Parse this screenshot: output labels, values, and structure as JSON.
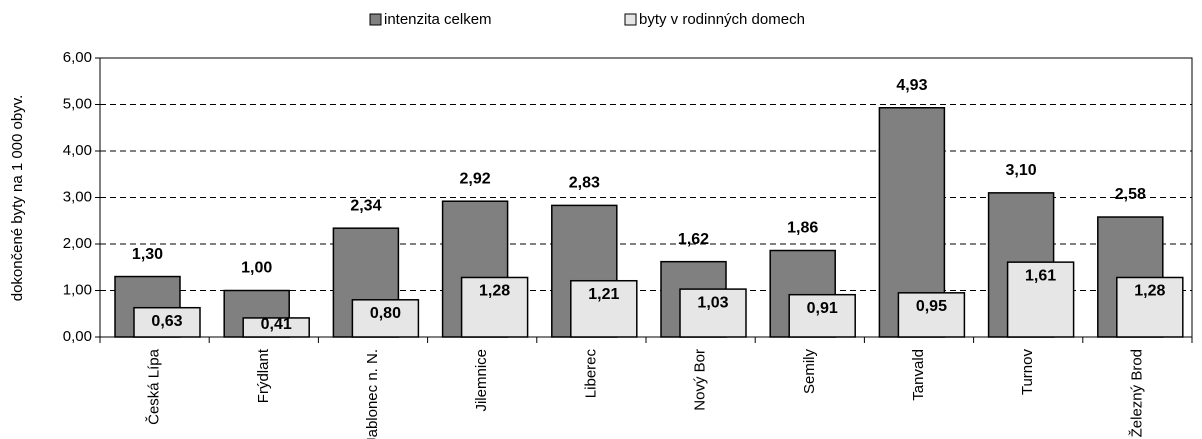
{
  "chart_data": {
    "type": "bar",
    "y_label": "dokončené byty na 1 000 obyv.",
    "categories": [
      "Česká Lípa",
      "Frýdlant",
      "Jablonec n. N.",
      "Jilemnice",
      "Liberec",
      "Nový Bor",
      "Semily",
      "Tanvald",
      "Turnov",
      "Železný Brod"
    ],
    "series": [
      {
        "name": "intenzita celkem",
        "color": "#808080",
        "values": [
          1.3,
          1.0,
          2.34,
          2.92,
          2.83,
          1.62,
          1.86,
          4.93,
          3.1,
          2.58
        ],
        "value_labels": [
          "1,30",
          "1,00",
          "2,34",
          "2,92",
          "2,83",
          "1,62",
          "1,86",
          "4,93",
          "3,10",
          "2,58"
        ]
      },
      {
        "name": "byty v rodinných domech",
        "color": "#e6e6e6",
        "values": [
          0.63,
          0.41,
          0.8,
          1.28,
          1.21,
          1.03,
          0.91,
          0.95,
          1.61,
          1.28
        ],
        "value_labels": [
          "0,63",
          "0,41",
          "0,80",
          "1,28",
          "1,21",
          "1,03",
          "0,91",
          "0,95",
          "1,61",
          "1,28"
        ]
      }
    ],
    "ylim": [
      0,
      6
    ],
    "yticks": [
      {
        "value": 0,
        "label": "0,00"
      },
      {
        "value": 1,
        "label": "1,00"
      },
      {
        "value": 2,
        "label": "2,00"
      },
      {
        "value": 3,
        "label": "3,00"
      },
      {
        "value": 4,
        "label": "4,00"
      },
      {
        "value": 5,
        "label": "5,00"
      },
      {
        "value": 6,
        "label": "6,00"
      }
    ],
    "grid": true,
    "legend": "top"
  }
}
